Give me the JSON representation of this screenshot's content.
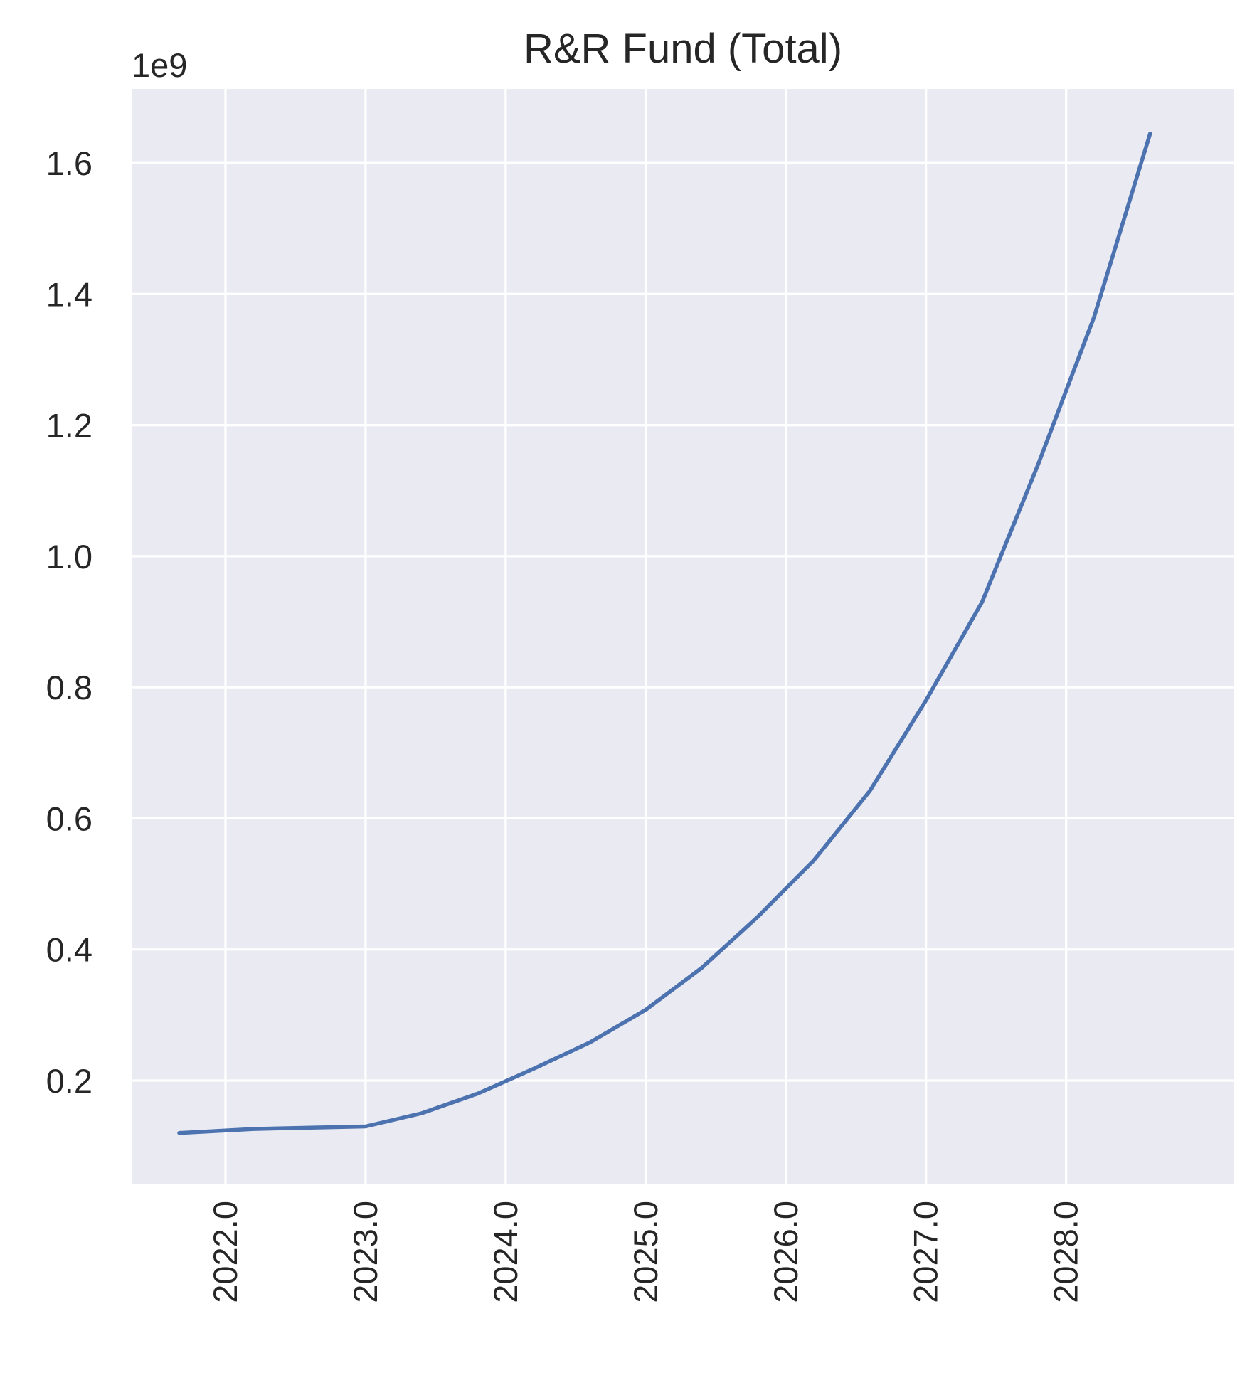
{
  "chart_data": {
    "type": "line",
    "title": "R&R Fund (Total)",
    "xlabel": "",
    "ylabel": "",
    "y_offset_label": "1e9",
    "xlim": [
      2021.33,
      2029.2
    ],
    "ylim": [
      0.0415,
      1.713
    ],
    "x_ticks": [
      2022,
      2023,
      2024,
      2025,
      2026,
      2027,
      2028
    ],
    "x_tick_labels": [
      "2022.0",
      "2023.0",
      "2024.0",
      "2025.0",
      "2026.0",
      "2027.0",
      "2028.0"
    ],
    "y_ticks": [
      0.2,
      0.4,
      0.6,
      0.8,
      1.0,
      1.2,
      1.4,
      1.6
    ],
    "y_tick_labels": [
      "0.2",
      "0.4",
      "0.6",
      "0.8",
      "1.0",
      "1.2",
      "1.4",
      "1.6"
    ],
    "grid": true,
    "background_color": "#eaeaf2",
    "grid_color": "#ffffff",
    "series": [
      {
        "color": "#4c72b0",
        "x": [
          2021.67,
          2022.2,
          2023.0,
          2023.4,
          2023.8,
          2024.2,
          2024.6,
          2025.0,
          2025.4,
          2025.8,
          2026.2,
          2026.6,
          2027.0,
          2027.4,
          2027.8,
          2028.2,
          2028.6
        ],
        "y": [
          0.12,
          0.126,
          0.13,
          0.15,
          0.18,
          0.218,
          0.258,
          0.308,
          0.372,
          0.45,
          0.536,
          0.642,
          0.78,
          0.93,
          1.14,
          1.365,
          1.645
        ]
      }
    ]
  }
}
